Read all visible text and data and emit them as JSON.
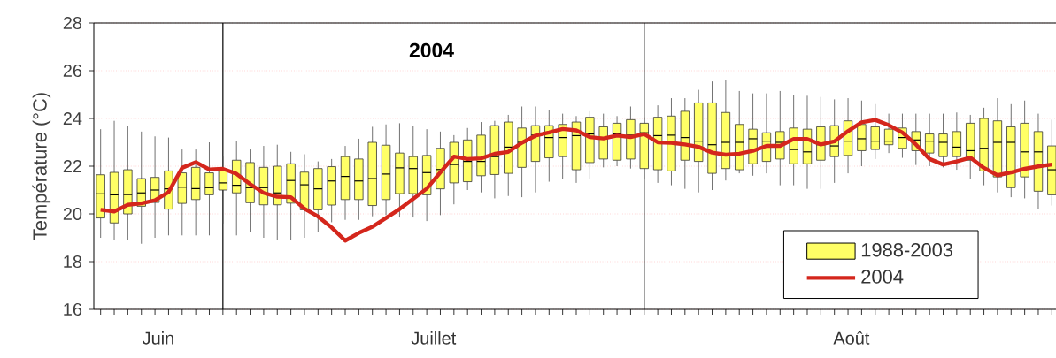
{
  "chart_data": {
    "type": "box",
    "title": "2004",
    "ylabel": "Température (°C)",
    "categories": [
      null,
      null,
      null,
      null,
      null,
      null,
      null,
      null,
      null,
      null,
      null,
      null,
      null,
      null,
      null,
      null,
      null,
      null,
      null,
      null,
      null,
      null,
      null,
      null,
      null,
      null,
      null,
      null,
      null,
      null,
      null,
      null,
      null,
      null,
      null,
      null,
      null,
      null,
      null,
      null,
      null,
      null,
      null,
      null,
      null,
      null,
      null,
      null,
      null,
      null,
      null,
      null,
      null,
      null,
      null,
      null,
      null,
      null,
      null,
      null,
      null,
      null,
      null,
      null,
      null,
      null,
      null,
      null,
      null,
      null,
      null
    ],
    "ylim": [
      16,
      28
    ],
    "yticks": [
      16,
      18,
      20,
      22,
      24,
      26,
      28
    ],
    "grid": "y",
    "legend": "bottom right",
    "annotations": [
      "Juin",
      "Juillet",
      "Août"
    ],
    "series": [
      {
        "name": "1988-2003",
        "color": "#ffff66",
        "boxes": [
          {
            "low": 19.0,
            "q1": 19.83,
            "median": 20.84,
            "q3": 21.64,
            "high": 23.55
          },
          {
            "low": 18.9,
            "q1": 19.62,
            "median": 20.8,
            "q3": 21.74,
            "high": 23.9
          },
          {
            "low": 18.9,
            "q1": 20.0,
            "median": 20.81,
            "q3": 21.85,
            "high": 23.7
          },
          {
            "low": 18.75,
            "q1": 20.32,
            "median": 20.88,
            "q3": 21.48,
            "high": 23.45
          },
          {
            "low": 19.0,
            "q1": 20.48,
            "median": 21.0,
            "q3": 21.53,
            "high": 23.25
          },
          {
            "low": 19.1,
            "q1": 20.2,
            "median": 21.05,
            "q3": 21.8,
            "high": 23.2
          },
          {
            "low": 19.1,
            "q1": 20.44,
            "median": 21.12,
            "q3": 21.72,
            "high": 22.7
          },
          {
            "low": 19.1,
            "q1": 20.6,
            "median": 21.06,
            "q3": 21.95,
            "high": 22.7
          },
          {
            "low": 19.1,
            "q1": 20.8,
            "median": 21.1,
            "q3": 21.72,
            "high": 23.0
          },
          {
            "low": 19.6,
            "q1": 21.0,
            "median": 21.3,
            "q3": 21.85,
            "high": 22.4
          },
          {
            "low": 19.1,
            "q1": 20.88,
            "median": 21.2,
            "q3": 22.25,
            "high": 23.05
          },
          {
            "low": 19.25,
            "q1": 20.47,
            "median": 21.1,
            "q3": 22.15,
            "high": 22.7
          },
          {
            "low": 19.0,
            "q1": 20.38,
            "median": 21.1,
            "q3": 21.95,
            "high": 22.85
          },
          {
            "low": 18.9,
            "q1": 20.38,
            "median": 20.88,
            "q3": 22.0,
            "high": 22.9
          },
          {
            "low": 18.9,
            "q1": 20.45,
            "median": 21.4,
            "q3": 22.1,
            "high": 22.6
          },
          {
            "low": 19.0,
            "q1": 20.17,
            "median": 21.22,
            "q3": 21.75,
            "high": 22.5
          },
          {
            "low": 19.25,
            "q1": 20.17,
            "median": 21.05,
            "q3": 21.9,
            "high": 22.2
          },
          {
            "low": 19.65,
            "q1": 20.37,
            "median": 21.38,
            "q3": 21.98,
            "high": 22.3
          },
          {
            "low": 19.75,
            "q1": 20.6,
            "median": 21.57,
            "q3": 22.4,
            "high": 22.85
          },
          {
            "low": 19.75,
            "q1": 20.6,
            "median": 21.38,
            "q3": 22.3,
            "high": 23.15
          },
          {
            "low": 19.9,
            "q1": 20.35,
            "median": 21.48,
            "q3": 23.0,
            "high": 23.65
          },
          {
            "low": 19.95,
            "q1": 20.6,
            "median": 21.67,
            "q3": 22.88,
            "high": 23.75
          },
          {
            "low": 19.85,
            "q1": 20.85,
            "median": 21.93,
            "q3": 22.55,
            "high": 23.8
          },
          {
            "low": 19.85,
            "q1": 20.85,
            "median": 21.9,
            "q3": 22.4,
            "high": 23.7
          },
          {
            "low": 19.7,
            "q1": 20.8,
            "median": 21.73,
            "q3": 22.45,
            "high": 23.55
          },
          {
            "low": 19.95,
            "q1": 21.05,
            "median": 21.86,
            "q3": 22.75,
            "high": 23.45
          },
          {
            "low": 20.4,
            "q1": 21.3,
            "median": 22.07,
            "q3": 23.0,
            "high": 23.3
          },
          {
            "low": 21.0,
            "q1": 21.35,
            "median": 22.2,
            "q3": 23.1,
            "high": 23.6
          },
          {
            "low": 20.9,
            "q1": 21.6,
            "median": 22.2,
            "q3": 23.3,
            "high": 23.85
          },
          {
            "low": 20.65,
            "q1": 21.65,
            "median": 22.4,
            "q3": 23.7,
            "high": 23.9
          },
          {
            "low": 20.75,
            "q1": 21.7,
            "median": 22.8,
            "q3": 23.85,
            "high": 24.15
          },
          {
            "low": 20.7,
            "q1": 21.95,
            "median": 23.0,
            "q3": 23.6,
            "high": 24.5
          },
          {
            "low": 20.9,
            "q1": 22.2,
            "median": 23.3,
            "q3": 23.7,
            "high": 24.5
          },
          {
            "low": 21.35,
            "q1": 22.35,
            "median": 23.2,
            "q3": 23.7,
            "high": 24.35
          },
          {
            "low": 21.45,
            "q1": 22.4,
            "median": 23.2,
            "q3": 23.75,
            "high": 24.2
          },
          {
            "low": 21.3,
            "q1": 21.85,
            "median": 23.28,
            "q3": 23.85,
            "high": 24.1
          },
          {
            "low": 21.45,
            "q1": 22.15,
            "median": 23.35,
            "q3": 24.05,
            "high": 24.3
          },
          {
            "low": 21.95,
            "q1": 22.3,
            "median": 23.15,
            "q3": 23.65,
            "high": 24.2
          },
          {
            "low": 22.0,
            "q1": 22.25,
            "median": 23.35,
            "q3": 23.8,
            "high": 24.1
          },
          {
            "low": 21.9,
            "q1": 22.3,
            "median": 23.3,
            "q3": 23.95,
            "high": 24.5
          },
          {
            "low": 21.45,
            "q1": 21.9,
            "median": 23.4,
            "q3": 23.8,
            "high": 24.05
          },
          {
            "low": 21.3,
            "q1": 21.85,
            "median": 23.28,
            "q3": 24.05,
            "high": 24.55
          },
          {
            "low": 21.2,
            "q1": 21.8,
            "median": 23.3,
            "q3": 24.1,
            "high": 24.85
          },
          {
            "low": 21.05,
            "q1": 22.25,
            "median": 23.2,
            "q3": 24.3,
            "high": 24.85
          },
          {
            "low": 20.9,
            "q1": 22.2,
            "median": 23.05,
            "q3": 24.65,
            "high": 25.2
          },
          {
            "low": 21.0,
            "q1": 21.7,
            "median": 22.9,
            "q3": 24.65,
            "high": 25.55
          },
          {
            "low": 21.4,
            "q1": 21.9,
            "median": 23.0,
            "q3": 24.25,
            "high": 25.6
          },
          {
            "low": 21.7,
            "q1": 21.85,
            "median": 23.0,
            "q3": 23.75,
            "high": 25.15
          },
          {
            "low": 21.6,
            "q1": 22.1,
            "median": 23.15,
            "q3": 23.55,
            "high": 25.05
          },
          {
            "low": 21.7,
            "q1": 22.2,
            "median": 23.05,
            "q3": 23.4,
            "high": 25.05
          },
          {
            "low": 21.2,
            "q1": 22.3,
            "median": 23.0,
            "q3": 23.45,
            "high": 25.15
          },
          {
            "low": 21.2,
            "q1": 22.1,
            "median": 22.7,
            "q3": 23.6,
            "high": 25.0
          },
          {
            "low": 21.05,
            "q1": 22.1,
            "median": 22.6,
            "q3": 23.55,
            "high": 24.95
          },
          {
            "low": 21.05,
            "q1": 22.25,
            "median": 22.9,
            "q3": 23.65,
            "high": 24.9
          },
          {
            "low": 21.3,
            "q1": 22.4,
            "median": 22.85,
            "q3": 23.7,
            "high": 24.8
          },
          {
            "low": 21.7,
            "q1": 22.45,
            "median": 23.05,
            "q3": 23.9,
            "high": 24.85
          },
          {
            "low": 22.0,
            "q1": 22.65,
            "median": 23.15,
            "q3": 23.75,
            "high": 24.75
          },
          {
            "low": 22.3,
            "q1": 22.7,
            "median": 23.05,
            "q3": 23.65,
            "high": 24.6
          },
          {
            "low": 22.55,
            "q1": 22.9,
            "median": 23.05,
            "q3": 23.55,
            "high": 24.2
          },
          {
            "low": 22.35,
            "q1": 22.75,
            "median": 23.2,
            "q3": 23.6,
            "high": 24.2
          },
          {
            "low": 22.05,
            "q1": 22.65,
            "median": 23.1,
            "q3": 23.45,
            "high": 24.2
          },
          {
            "low": 22.0,
            "q1": 22.55,
            "median": 23.05,
            "q3": 23.35,
            "high": 24.2
          },
          {
            "low": 21.95,
            "q1": 22.4,
            "median": 23.0,
            "q3": 23.35,
            "high": 24.2
          },
          {
            "low": 21.85,
            "q1": 22.4,
            "median": 22.8,
            "q3": 23.45,
            "high": 24.25
          },
          {
            "low": 21.45,
            "q1": 22.25,
            "median": 22.65,
            "q3": 23.8,
            "high": 24.15
          },
          {
            "low": 21.2,
            "q1": 21.8,
            "median": 22.75,
            "q3": 24.0,
            "high": 24.45
          },
          {
            "low": 20.9,
            "q1": 21.55,
            "median": 23.0,
            "q3": 23.9,
            "high": 24.85
          },
          {
            "low": 20.7,
            "q1": 21.1,
            "median": 23.0,
            "q3": 23.65,
            "high": 24.6
          },
          {
            "low": 20.65,
            "q1": 21.55,
            "median": 22.6,
            "q3": 23.8,
            "high": 24.75
          },
          {
            "low": 20.2,
            "q1": 20.95,
            "median": 22.6,
            "q3": 23.45,
            "high": 24.2
          },
          {
            "low": 20.35,
            "q1": 20.8,
            "median": 21.85,
            "q3": 22.85,
            "high": 23.95
          }
        ]
      },
      {
        "name": "2004",
        "type": "line",
        "color": "#d4261c",
        "values": [
          20.17,
          20.1,
          20.38,
          20.44,
          20.57,
          20.91,
          21.93,
          22.17,
          21.86,
          21.89,
          21.68,
          21.25,
          20.88,
          20.72,
          20.7,
          20.22,
          19.89,
          19.43,
          18.88,
          19.2,
          19.46,
          19.83,
          20.2,
          20.63,
          21.06,
          21.74,
          22.4,
          22.3,
          22.33,
          22.52,
          22.6,
          22.98,
          23.28,
          23.41,
          23.56,
          23.5,
          23.22,
          23.16,
          23.28,
          23.22,
          23.35,
          23.0,
          22.98,
          22.91,
          22.81,
          22.57,
          22.48,
          22.52,
          22.64,
          22.85,
          22.85,
          23.14,
          23.14,
          22.91,
          23.04,
          23.47,
          23.84,
          23.94,
          23.72,
          23.41,
          22.91,
          22.3,
          22.07,
          22.2,
          22.36,
          21.93,
          21.62,
          21.74,
          21.89,
          21.99,
          22.07
        ]
      }
    ]
  }
}
